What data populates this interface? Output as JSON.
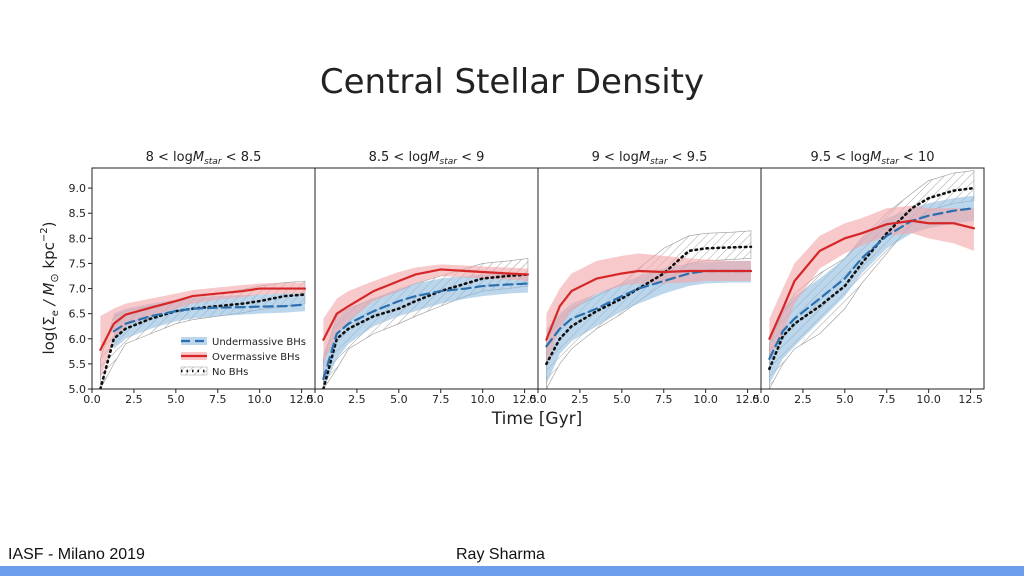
{
  "slide": {
    "title": "Central Stellar Density",
    "footer_left": "IASF - Milano 2019",
    "footer_center": "Ray Sharma",
    "bar_color": "#6d9eeb"
  },
  "colors": {
    "undermassive": "#2b6fae",
    "undermassive_band": "#8fbbe0",
    "overmassive": "#d62728",
    "overmassive_band": "#f2a5a8",
    "nobh": "#111111",
    "nobh_band": "#9a9a9a"
  },
  "chart_data": {
    "type": "line",
    "ylabel_parts": {
      "log": "log(",
      "sigma": "Σ",
      "sub_e": "e",
      "mid": " / M",
      "sun": "⊙",
      "kpc": "  kpc",
      "exp": "−2",
      "close": ")"
    },
    "xlabel": "Time [Gyr]",
    "xlim": [
      0,
      13.3
    ],
    "ylim": [
      5.0,
      9.4
    ],
    "xticks": [
      "0.0",
      "2.5",
      "5.0",
      "7.5",
      "10.0",
      "12.5"
    ],
    "yticks": [
      "5.0",
      "5.5",
      "6.0",
      "6.5",
      "7.0",
      "7.5",
      "8.0",
      "8.5",
      "9.0"
    ],
    "legend": {
      "placement": "lower-right of first panel",
      "entries": [
        "Undermassive BHs",
        "Overmassive BHs",
        "No BHs"
      ]
    },
    "x": [
      0.5,
      1.3,
      2.0,
      3.5,
      5.0,
      6.0,
      7.5,
      9.0,
      10.0,
      11.5,
      12.7
    ],
    "panels": [
      {
        "title": {
          "lo": "8",
          "hi": "8.5"
        },
        "series": [
          {
            "name": "Undermassive BHs",
            "values": [
              null,
              6.15,
              6.3,
              6.45,
              6.55,
              6.6,
              6.62,
              6.63,
              6.64,
              6.65,
              6.68
            ],
            "lower": [
              null,
              5.8,
              6.0,
              6.2,
              6.35,
              6.4,
              6.45,
              6.48,
              6.5,
              6.52,
              6.55
            ],
            "upper": [
              null,
              6.5,
              6.6,
              6.7,
              6.78,
              6.82,
              6.85,
              6.87,
              6.88,
              6.9,
              6.92
            ]
          },
          {
            "name": "Overmassive BHs",
            "values": [
              5.78,
              6.3,
              6.48,
              6.62,
              6.75,
              6.85,
              6.9,
              6.95,
              7.0,
              7.0,
              7.0
            ],
            "lower": [
              5.2,
              6.0,
              6.25,
              6.45,
              6.6,
              6.7,
              6.78,
              6.83,
              6.88,
              6.9,
              6.9
            ],
            "upper": [
              6.45,
              6.6,
              6.7,
              6.8,
              6.9,
              6.97,
              7.02,
              7.07,
              7.1,
              7.12,
              7.12
            ]
          },
          {
            "name": "No BHs",
            "values": [
              5.0,
              6.0,
              6.2,
              6.4,
              6.55,
              6.6,
              6.65,
              6.7,
              6.75,
              6.85,
              6.88
            ],
            "lower": [
              5.0,
              5.5,
              5.9,
              6.1,
              6.3,
              6.38,
              6.45,
              6.52,
              6.58,
              6.65,
              6.7
            ],
            "upper": [
              5.6,
              6.45,
              6.55,
              6.65,
              6.75,
              6.85,
              6.9,
              6.98,
              7.05,
              7.12,
              7.15
            ]
          }
        ]
      },
      {
        "title": {
          "lo": "8.5",
          "hi": "9"
        },
        "series": [
          {
            "name": "Undermassive BHs",
            "values": [
              5.2,
              6.1,
              6.3,
              6.55,
              6.75,
              6.85,
              6.95,
              7.0,
              7.05,
              7.08,
              7.1
            ],
            "lower": [
              5.0,
              5.6,
              5.9,
              6.25,
              6.45,
              6.55,
              6.7,
              6.8,
              6.85,
              6.9,
              6.92
            ],
            "upper": [
              5.7,
              6.4,
              6.6,
              6.8,
              7.0,
              7.1,
              7.2,
              7.25,
              7.28,
              7.3,
              7.3
            ]
          },
          {
            "name": "Overmassive BHs",
            "values": [
              5.98,
              6.5,
              6.65,
              6.95,
              7.15,
              7.28,
              7.38,
              7.35,
              7.33,
              7.3,
              7.28
            ],
            "lower": [
              5.5,
              6.1,
              6.35,
              6.75,
              6.95,
              7.1,
              7.25,
              7.22,
              7.2,
              7.18,
              7.15
            ],
            "upper": [
              6.4,
              6.8,
              6.95,
              7.15,
              7.33,
              7.42,
              7.48,
              7.46,
              7.44,
              7.42,
              7.4
            ]
          },
          {
            "name": "No BHs",
            "values": [
              5.0,
              6.0,
              6.2,
              6.45,
              6.6,
              6.75,
              6.95,
              7.1,
              7.2,
              7.25,
              7.28
            ],
            "lower": [
              5.0,
              5.4,
              5.8,
              6.1,
              6.3,
              6.45,
              6.65,
              6.85,
              6.95,
              7.0,
              7.05
            ],
            "upper": [
              5.6,
              6.45,
              6.6,
              6.8,
              6.95,
              7.1,
              7.25,
              7.4,
              7.5,
              7.55,
              7.6
            ]
          }
        ]
      },
      {
        "title": {
          "lo": "9",
          "hi": "9.5"
        },
        "series": [
          {
            "name": "Undermassive BHs",
            "values": [
              5.85,
              6.2,
              6.4,
              6.6,
              6.85,
              7.0,
              7.15,
              7.3,
              7.35,
              7.35,
              7.35
            ],
            "lower": [
              5.1,
              5.7,
              5.95,
              6.25,
              6.55,
              6.7,
              6.9,
              7.05,
              7.1,
              7.12,
              7.12
            ],
            "upper": [
              6.2,
              6.5,
              6.7,
              6.9,
              7.1,
              7.25,
              7.4,
              7.5,
              7.52,
              7.55,
              7.55
            ]
          },
          {
            "name": "Overmassive BHs",
            "values": [
              5.98,
              6.65,
              6.95,
              7.2,
              7.3,
              7.35,
              7.33,
              7.35,
              7.35,
              7.35,
              7.35
            ],
            "lower": [
              5.5,
              6.2,
              6.55,
              6.9,
              7.05,
              7.1,
              7.1,
              7.12,
              7.15,
              7.15,
              7.15
            ],
            "upper": [
              6.5,
              7.0,
              7.3,
              7.55,
              7.65,
              7.7,
              7.65,
              7.6,
              7.58,
              7.55,
              7.55
            ]
          },
          {
            "name": "No BHs",
            "values": [
              5.5,
              6.0,
              6.25,
              6.55,
              6.8,
              7.0,
              7.3,
              7.75,
              7.8,
              7.82,
              7.83
            ],
            "lower": [
              5.0,
              5.5,
              5.8,
              6.2,
              6.5,
              6.75,
              7.1,
              7.5,
              7.55,
              7.58,
              7.6
            ],
            "upper": [
              6.0,
              6.4,
              6.6,
              6.85,
              7.1,
              7.4,
              7.8,
              8.05,
              8.1,
              8.12,
              8.15
            ]
          }
        ]
      },
      {
        "title": {
          "lo": "9.5",
          "hi": "10"
        },
        "series": [
          {
            "name": "Undermassive BHs",
            "values": [
              5.6,
              6.15,
              6.4,
              6.8,
              7.2,
              7.6,
              8.05,
              8.35,
              8.45,
              8.55,
              8.6
            ],
            "lower": [
              5.1,
              5.6,
              5.85,
              6.35,
              6.85,
              7.3,
              7.8,
              8.1,
              8.2,
              8.3,
              8.35
            ],
            "upper": [
              6.0,
              6.6,
              6.85,
              7.2,
              7.6,
              8.0,
              8.4,
              8.6,
              8.7,
              8.8,
              8.85
            ]
          },
          {
            "name": "Overmassive BHs",
            "values": [
              6.0,
              6.6,
              7.15,
              7.75,
              8.0,
              8.1,
              8.28,
              8.35,
              8.3,
              8.3,
              8.2
            ],
            "lower": [
              5.6,
              6.1,
              6.7,
              7.4,
              7.7,
              7.85,
              8.05,
              8.1,
              8.0,
              7.9,
              7.75
            ],
            "upper": [
              6.4,
              7.0,
              7.5,
              8.05,
              8.3,
              8.4,
              8.6,
              8.65,
              8.6,
              8.6,
              8.6
            ]
          },
          {
            "name": "No BHs",
            "values": [
              5.4,
              6.05,
              6.3,
              6.65,
              7.05,
              7.5,
              8.1,
              8.6,
              8.8,
              8.95,
              9.0
            ],
            "lower": [
              5.0,
              5.5,
              5.8,
              6.1,
              6.6,
              7.1,
              7.7,
              8.3,
              8.55,
              8.7,
              8.75
            ],
            "upper": [
              5.9,
              6.5,
              6.9,
              7.3,
              7.6,
              8.0,
              8.5,
              8.9,
              9.15,
              9.3,
              9.35
            ]
          }
        ]
      }
    ]
  }
}
